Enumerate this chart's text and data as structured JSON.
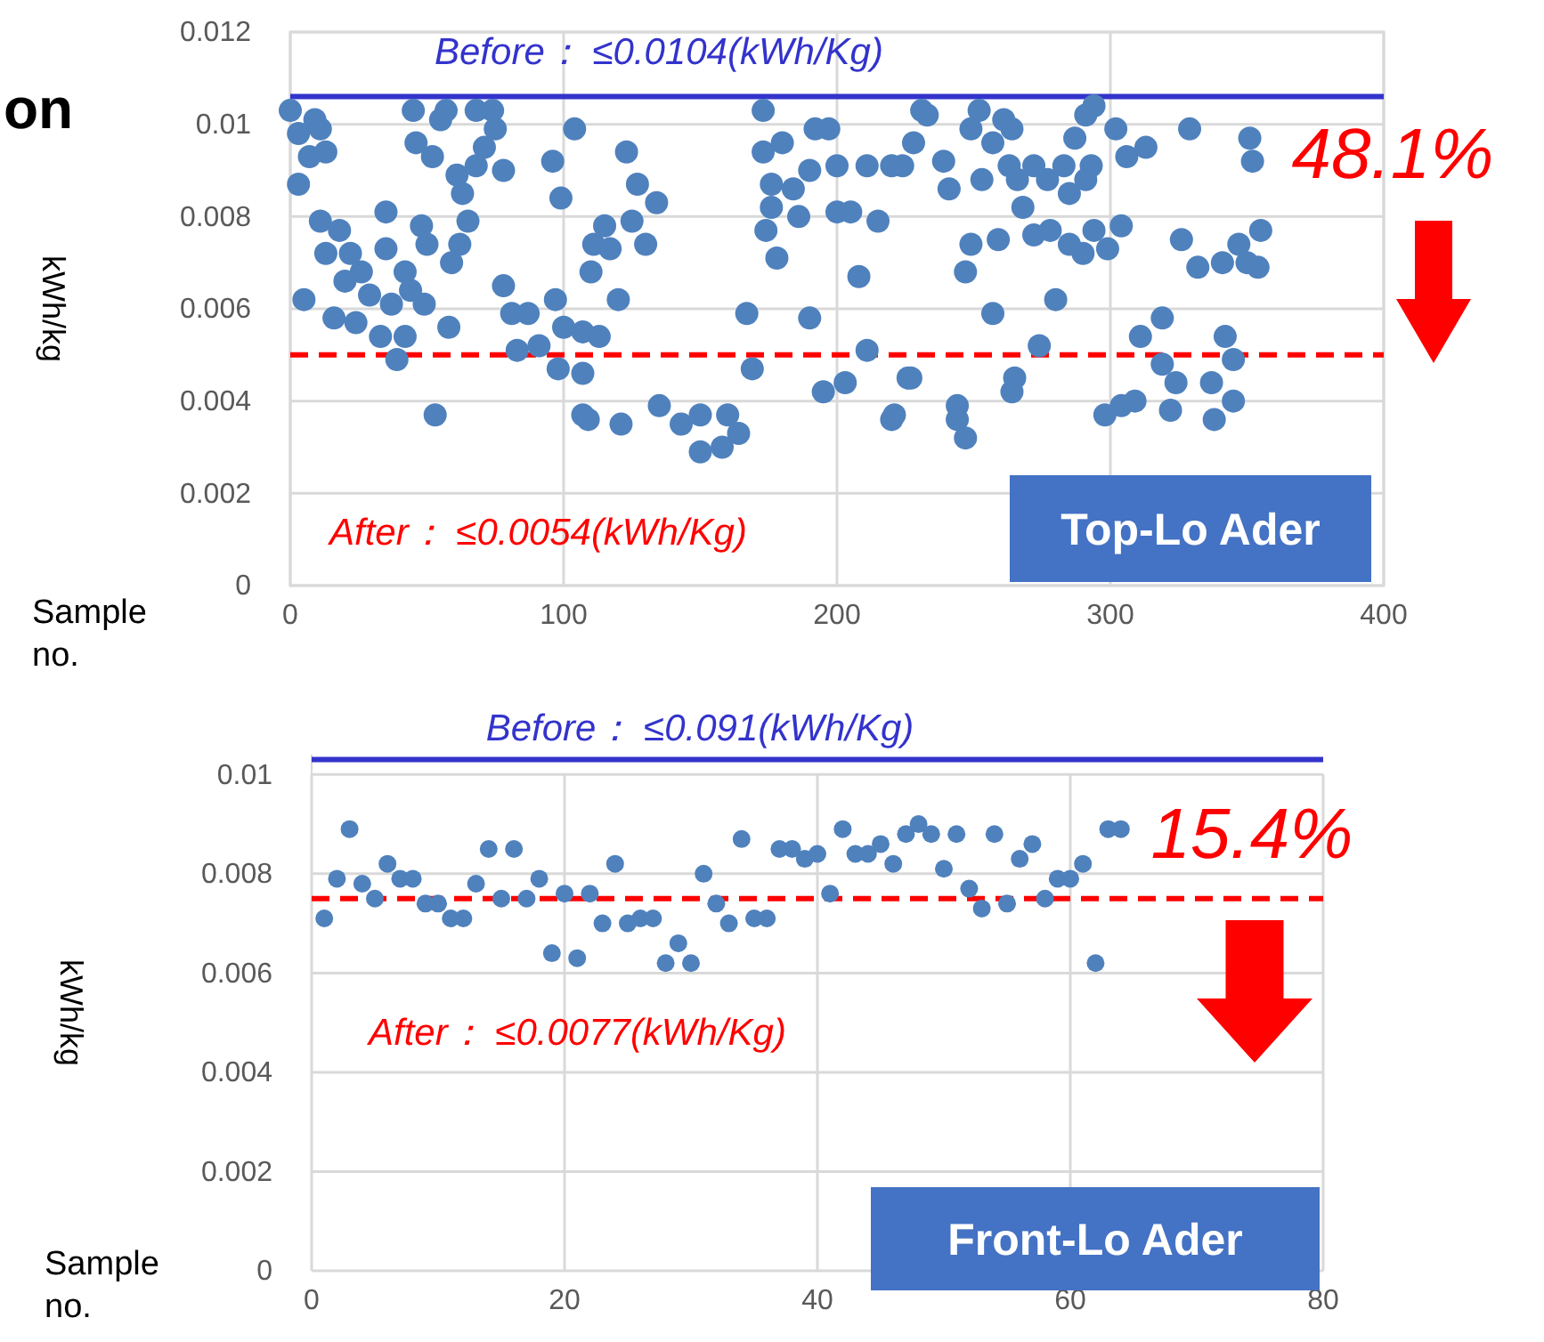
{
  "chart_data": [
    {
      "type": "scatter",
      "title": "on",
      "xlabel": "Sample no.",
      "ylabel": "kWh/kg",
      "color": "#4f81bd",
      "marker": "circle",
      "grid": true,
      "x": [
        0,
        9,
        3,
        11,
        7,
        13,
        3,
        11,
        18,
        13,
        22,
        20,
        26,
        29,
        5,
        16,
        24,
        33,
        37,
        39,
        42,
        35,
        35,
        42,
        44,
        49,
        45,
        46,
        52,
        48,
        50,
        53,
        57,
        55,
        61,
        63,
        65,
        62,
        59,
        58,
        68,
        74,
        75,
        71,
        68,
        78,
        78,
        81,
        87,
        83,
        91,
        98,
        97,
        96,
        99,
        104,
        100,
        107,
        107,
        123,
        127,
        134,
        125,
        115,
        111,
        117,
        130,
        110,
        120,
        107,
        113,
        109,
        121,
        135,
        143,
        150,
        160,
        164,
        150,
        158,
        167,
        169,
        173,
        173,
        176,
        176,
        174,
        178,
        180,
        184,
        186,
        190,
        192,
        197,
        200,
        205,
        200,
        211,
        220,
        215,
        208,
        190,
        211,
        195,
        203,
        220,
        226,
        231,
        228,
        233,
        224,
        239,
        241,
        252,
        249,
        261,
        257,
        264,
        253,
        263,
        266,
        272,
        277,
        283,
        285,
        287,
        291,
        294,
        293,
        291,
        302,
        306,
        313,
        268,
        272,
        278,
        285,
        290,
        294,
        299,
        304,
        259,
        249,
        247,
        257,
        280,
        227,
        221,
        244,
        244,
        247,
        265,
        264,
        274,
        298,
        304,
        309,
        311,
        319,
        319,
        324,
        322,
        337,
        338,
        345,
        342,
        345,
        329,
        351,
        352,
        326,
        332,
        341,
        347,
        355,
        354,
        350
      ],
      "values": [
        0.0103,
        0.0101,
        0.0098,
        0.0099,
        0.0093,
        0.0094,
        0.0087,
        0.0079,
        0.0077,
        0.0072,
        0.0072,
        0.0066,
        0.0068,
        0.0063,
        0.0062,
        0.0058,
        0.0057,
        0.0054,
        0.0061,
        0.0049,
        0.0054,
        0.0081,
        0.0073,
        0.0068,
        0.0064,
        0.0061,
        0.0103,
        0.0096,
        0.0093,
        0.0078,
        0.0074,
        0.0037,
        0.0103,
        0.0101,
        0.0089,
        0.0085,
        0.0079,
        0.0074,
        0.007,
        0.0056,
        0.0103,
        0.0103,
        0.0099,
        0.0095,
        0.0091,
        0.009,
        0.0065,
        0.0059,
        0.0059,
        0.0051,
        0.0052,
        0.0047,
        0.0062,
        0.0092,
        0.0084,
        0.0099,
        0.0056,
        0.0046,
        0.0037,
        0.0094,
        0.0087,
        0.0083,
        0.0079,
        0.0078,
        0.0074,
        0.0073,
        0.0074,
        0.0068,
        0.0062,
        0.0055,
        0.0054,
        0.0036,
        0.0035,
        0.0039,
        0.0035,
        0.0037,
        0.0037,
        0.0033,
        0.0029,
        0.003,
        0.0059,
        0.0047,
        0.0103,
        0.0094,
        0.0087,
        0.0082,
        0.0077,
        0.0071,
        0.0096,
        0.0086,
        0.008,
        0.009,
        0.0099,
        0.0099,
        0.0081,
        0.0081,
        0.0091,
        0.0091,
        0.0091,
        0.0079,
        0.0067,
        0.0058,
        0.0051,
        0.0042,
        0.0044,
        0.0036,
        0.0045,
        0.0103,
        0.0096,
        0.0102,
        0.0091,
        0.0092,
        0.0086,
        0.0103,
        0.0099,
        0.0101,
        0.0096,
        0.0099,
        0.0088,
        0.0091,
        0.0088,
        0.0091,
        0.0088,
        0.0091,
        0.0085,
        0.0097,
        0.0102,
        0.0104,
        0.0091,
        0.0088,
        0.0099,
        0.0093,
        0.0095,
        0.0082,
        0.0076,
        0.0077,
        0.0074,
        0.0072,
        0.0077,
        0.0073,
        0.0078,
        0.0075,
        0.0074,
        0.0068,
        0.0059,
        0.0062,
        0.0045,
        0.0037,
        0.0039,
        0.0036,
        0.0032,
        0.0045,
        0.0042,
        0.0052,
        0.0037,
        0.0039,
        0.004,
        0.0054,
        0.0058,
        0.0048,
        0.0044,
        0.0038,
        0.0044,
        0.0036,
        0.004,
        0.0054,
        0.0049,
        0.0099,
        0.0097,
        0.0092,
        0.0075,
        0.0069,
        0.007,
        0.0074,
        0.0077,
        0.0069,
        0.007
      ],
      "xlim": [
        0,
        400
      ],
      "xticks": [
        0,
        100,
        200,
        300,
        400
      ],
      "ylim": [
        0,
        0.012
      ],
      "yticks": [
        0,
        0.002,
        0.004,
        0.006,
        0.008,
        0.01,
        0.012
      ],
      "ref_lines": [
        {
          "axis": "y",
          "value": 0.0106,
          "label": "Before： ≤0.0104(kWh/Kg)",
          "color": "#3333cc",
          "line_style": "solid"
        },
        {
          "axis": "y",
          "value": 0.005,
          "label": "After： ≤0.0054(kWh/Kg)",
          "color": "#ff0000",
          "line_style": "dashed"
        }
      ],
      "annotations": [
        "48.1%",
        "Top-Lo Ader"
      ]
    },
    {
      "type": "scatter",
      "xlabel": "Sample no.",
      "ylabel": "kWh/kg",
      "color": "#4f81bd",
      "marker": "circle",
      "grid": true,
      "x": [
        1,
        2,
        3,
        4,
        5,
        6,
        7,
        8,
        9,
        10,
        11,
        12,
        13,
        14,
        15,
        16,
        17,
        18,
        19,
        20,
        21,
        22,
        23,
        24,
        25,
        26,
        27,
        28,
        29,
        30,
        31,
        32,
        33,
        34,
        35,
        36,
        37,
        38,
        39,
        40,
        41,
        42,
        43,
        44,
        45,
        46,
        47,
        48,
        49,
        50,
        51,
        52,
        53,
        54,
        55,
        56,
        57,
        58,
        59,
        60,
        61,
        62,
        63,
        64
      ],
      "values": [
        0.0071,
        0.0079,
        0.0089,
        0.0078,
        0.0075,
        0.0082,
        0.0079,
        0.0079,
        0.0074,
        0.0074,
        0.0071,
        0.0071,
        0.0078,
        0.0085,
        0.0075,
        0.0085,
        0.0075,
        0.0079,
        0.0064,
        0.0076,
        0.0063,
        0.0076,
        0.007,
        0.0082,
        0.007,
        0.0071,
        0.0071,
        0.0062,
        0.0066,
        0.0062,
        0.008,
        0.0074,
        0.007,
        0.0087,
        0.0071,
        0.0071,
        0.0085,
        0.0085,
        0.0083,
        0.0084,
        0.0076,
        0.0089,
        0.0084,
        0.0084,
        0.0086,
        0.0082,
        0.0088,
        0.009,
        0.0088,
        0.0081,
        0.0088,
        0.0077,
        0.0073,
        0.0088,
        0.0074,
        0.0083,
        0.0086,
        0.0075,
        0.0079,
        0.0079,
        0.0082,
        0.0062,
        0.0089,
        0.0089
      ],
      "xlim": [
        0,
        80
      ],
      "xticks": [
        0,
        20,
        40,
        60,
        80
      ],
      "ylim": [
        0,
        0.0104
      ],
      "yticks": [
        0,
        0.002,
        0.004,
        0.006,
        0.008,
        0.01
      ],
      "ref_lines": [
        {
          "axis": "y",
          "value": 0.0103,
          "label": "Before： ≤0.091(kWh/Kg)",
          "color": "#3333cc",
          "line_style": "solid"
        },
        {
          "axis": "y",
          "value": 0.0075,
          "label": "After： ≤0.0077(kWh/Kg)",
          "color": "#ff0000",
          "line_style": "dashed"
        }
      ],
      "annotations": [
        "15.4%",
        "Front-Lo Ader"
      ]
    }
  ]
}
